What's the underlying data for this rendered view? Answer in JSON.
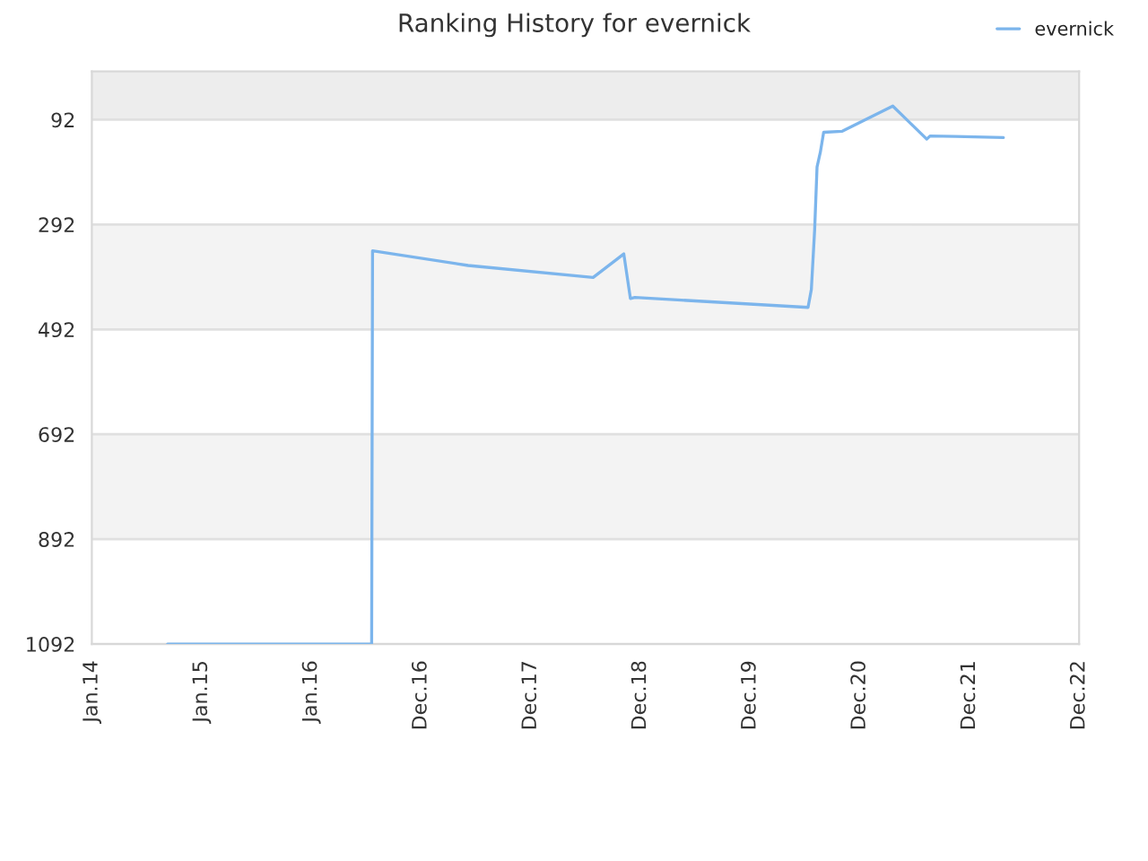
{
  "chart_data": {
    "type": "line",
    "title": "Ranking History for evernick",
    "series": [
      {
        "name": "evernick",
        "color": "#7cb5ec",
        "x": [
          "2014-09-10",
          "2016-07-20",
          "2016-07-23",
          "2017-06-06",
          "2018-07-27",
          "2018-11-06",
          "2018-11-28",
          "2018-12-13",
          "2020-07-11",
          "2020-07-22",
          "2020-08-02",
          "2020-08-10",
          "2020-08-21",
          "2020-09-01",
          "2020-11-02",
          "2021-04-19",
          "2021-08-10",
          "2021-08-21",
          "2021-11-13",
          "2022-04-22"
        ],
        "values": [
          1092,
          1092,
          342,
          370,
          393,
          348,
          433,
          431,
          450,
          416,
          302,
          182,
          154,
          116,
          114,
          66,
          129,
          123,
          124,
          126
        ]
      }
    ],
    "xlim": [
      "2014-01-01",
      "2022-12-30"
    ],
    "xticks": [
      {
        "value": "2014-01-01",
        "label": "Jan.14"
      },
      {
        "value": "2015-01-01",
        "label": "Jan.15"
      },
      {
        "value": "2016-01-01",
        "label": "Jan.16"
      },
      {
        "value": "2016-12-31",
        "label": "Dec.16"
      },
      {
        "value": "2017-12-31",
        "label": "Dec.17"
      },
      {
        "value": "2018-12-31",
        "label": "Dec.18"
      },
      {
        "value": "2019-12-31",
        "label": "Dec.19"
      },
      {
        "value": "2020-12-30",
        "label": "Dec.20"
      },
      {
        "value": "2021-12-30",
        "label": "Dec.21"
      },
      {
        "value": "2022-12-30",
        "label": "Dec.22"
      }
    ],
    "ylim": [
      1092,
      0
    ],
    "yticks": [
      92,
      292,
      492,
      692,
      892,
      1092
    ],
    "bands": [
      {
        "axis": "y",
        "from": 0,
        "to": 92,
        "color": "#ededed"
      },
      {
        "axis": "y",
        "from": 292,
        "to": 492,
        "color": "#f3f3f3"
      },
      {
        "axis": "y",
        "from": 692,
        "to": 892,
        "color": "#f3f3f3"
      }
    ],
    "grid": "y",
    "legend": "top right",
    "marker": "none",
    "line_style": "solid"
  }
}
